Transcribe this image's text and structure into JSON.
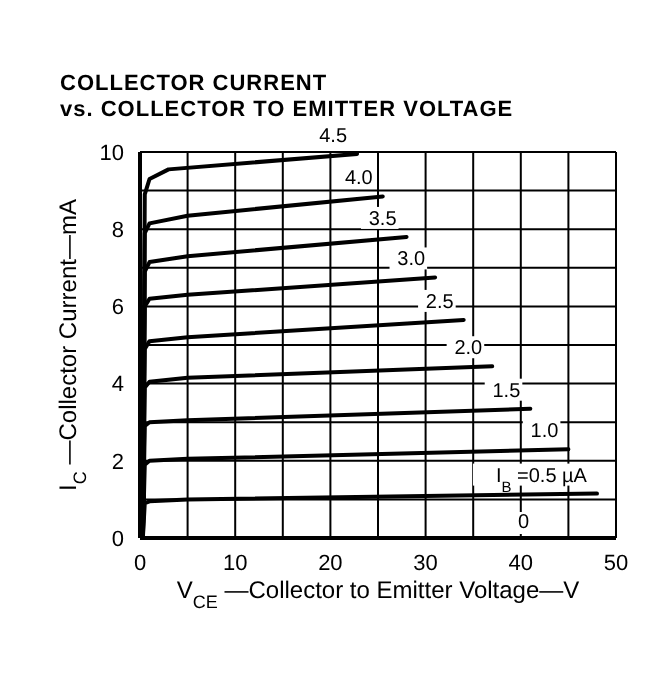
{
  "chart_data": {
    "type": "line",
    "title": "COLLECTOR CURRENT",
    "subtitle": "vs. COLLECTOR TO EMITTER VOLTAGE",
    "xlabel": "V$_{CE}$—Collector to Emitter Voltage—V",
    "ylabel": "I$_{C}$—Collector Current—mA",
    "xlim": [
      0,
      50
    ],
    "xticks": [
      0,
      {
        "value": 5,
        "label": null
      },
      10,
      {
        "value": 15,
        "label": null
      },
      20,
      {
        "value": 25,
        "label": null
      },
      30,
      {
        "value": 35,
        "label": null
      },
      40,
      {
        "value": 45,
        "label": null
      },
      50
    ],
    "ylim": [
      0,
      10
    ],
    "yticks": [
      0,
      {
        "value": 1,
        "label": null
      },
      2,
      {
        "value": 3,
        "label": null
      },
      4,
      {
        "value": 5,
        "label": null
      },
      6,
      {
        "value": 7,
        "label": null
      },
      8,
      {
        "value": 9,
        "label": null
      },
      10
    ],
    "grid": true,
    "marker": "none",
    "line_style": "solid",
    "annotations": [
      "0"
    ],
    "series": [
      {
        "name": "I$_{B}$=0.5 µA",
        "color": "#000000",
        "x": [
          0.3,
          0.5,
          1,
          5,
          48
        ],
        "values": [
          0,
          0.9,
          0.95,
          1.0,
          1.15
        ]
      },
      {
        "name": "1.0",
        "color": "#000000",
        "x": [
          0.3,
          0.5,
          1,
          5,
          45
        ],
        "values": [
          0,
          1.9,
          2.0,
          2.05,
          2.3
        ]
      },
      {
        "name": "1.5",
        "color": "#000000",
        "x": [
          0.3,
          0.5,
          1,
          5,
          41
        ],
        "values": [
          0,
          2.9,
          3.0,
          3.05,
          3.35
        ]
      },
      {
        "name": "2.0",
        "color": "#000000",
        "x": [
          0.3,
          0.5,
          1,
          5,
          37
        ],
        "values": [
          0,
          3.9,
          4.05,
          4.15,
          4.45
        ]
      },
      {
        "name": "2.5",
        "color": "#000000",
        "x": [
          0.3,
          0.5,
          1,
          5,
          34
        ],
        "values": [
          0,
          4.9,
          5.1,
          5.2,
          5.65
        ]
      },
      {
        "name": "3.0",
        "color": "#000000",
        "x": [
          0.3,
          0.5,
          1,
          5,
          31
        ],
        "values": [
          0,
          6.0,
          6.2,
          6.3,
          6.75
        ]
      },
      {
        "name": "3.5",
        "color": "#000000",
        "x": [
          0.3,
          0.5,
          1,
          5,
          28
        ],
        "values": [
          0,
          6.9,
          7.15,
          7.3,
          7.8
        ]
      },
      {
        "name": "4.0",
        "color": "#000000",
        "x": [
          0.3,
          0.5,
          1,
          5,
          25.5
        ],
        "values": [
          0,
          7.9,
          8.15,
          8.35,
          8.85
        ]
      },
      {
        "name": "4.5",
        "color": "#000000",
        "x": [
          0.3,
          0.5,
          1,
          3,
          22.8
        ],
        "values": [
          0,
          8.9,
          9.3,
          9.55,
          9.95
        ]
      }
    ]
  }
}
